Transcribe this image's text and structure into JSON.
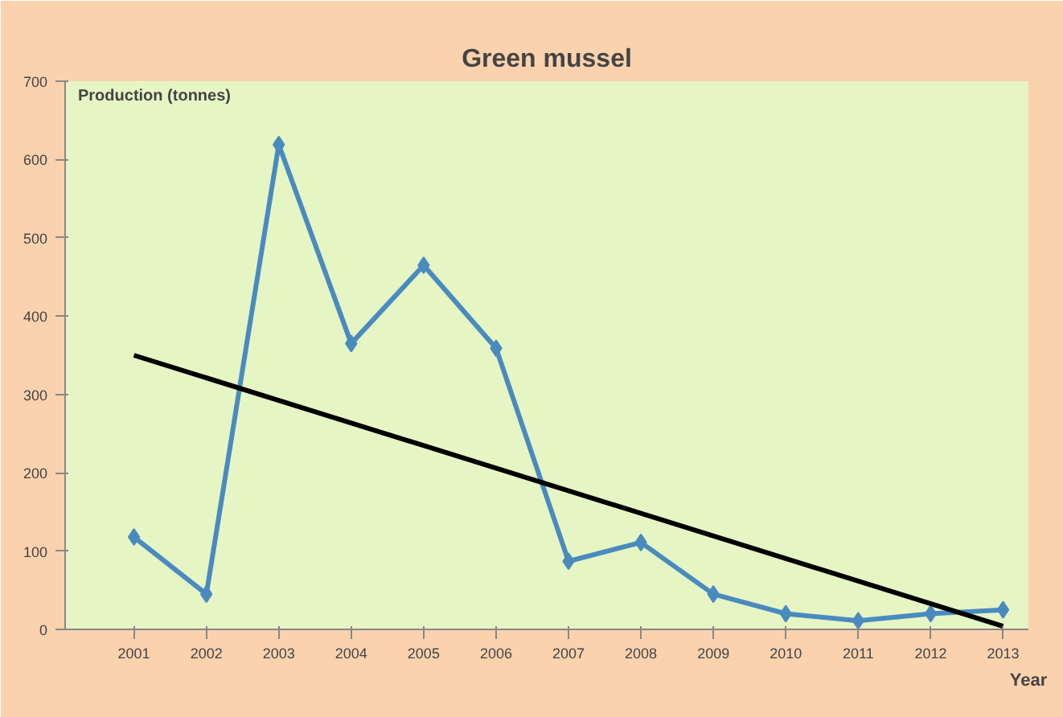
{
  "chart_data": {
    "type": "line",
    "title": "Green mussel",
    "xlabel": "Year",
    "ylabel": "Production (tonnes)",
    "x": [
      2001,
      2002,
      2003,
      2004,
      2005,
      2006,
      2007,
      2008,
      2009,
      2010,
      2011,
      2012,
      2013
    ],
    "series": [
      {
        "color": "#4a8bbf",
        "marker": "diamond",
        "values": [
          118,
          45,
          619,
          365,
          465,
          359,
          87,
          111,
          45,
          20,
          11,
          20,
          25
        ]
      },
      {
        "type": "line",
        "color": "#000000",
        "marker": "none",
        "x": [
          2001,
          2013
        ],
        "values": [
          350,
          4
        ]
      }
    ],
    "xlim": [
      2000.05,
      2013.35
    ],
    "xticks": [
      2001,
      2002,
      2003,
      2004,
      2005,
      2006,
      2007,
      2008,
      2009,
      2010,
      2011,
      2012,
      2013
    ],
    "ylim": [
      0,
      700
    ],
    "yticks": [
      0,
      100,
      200,
      300,
      400,
      500,
      600,
      700
    ],
    "grid": false
  }
}
